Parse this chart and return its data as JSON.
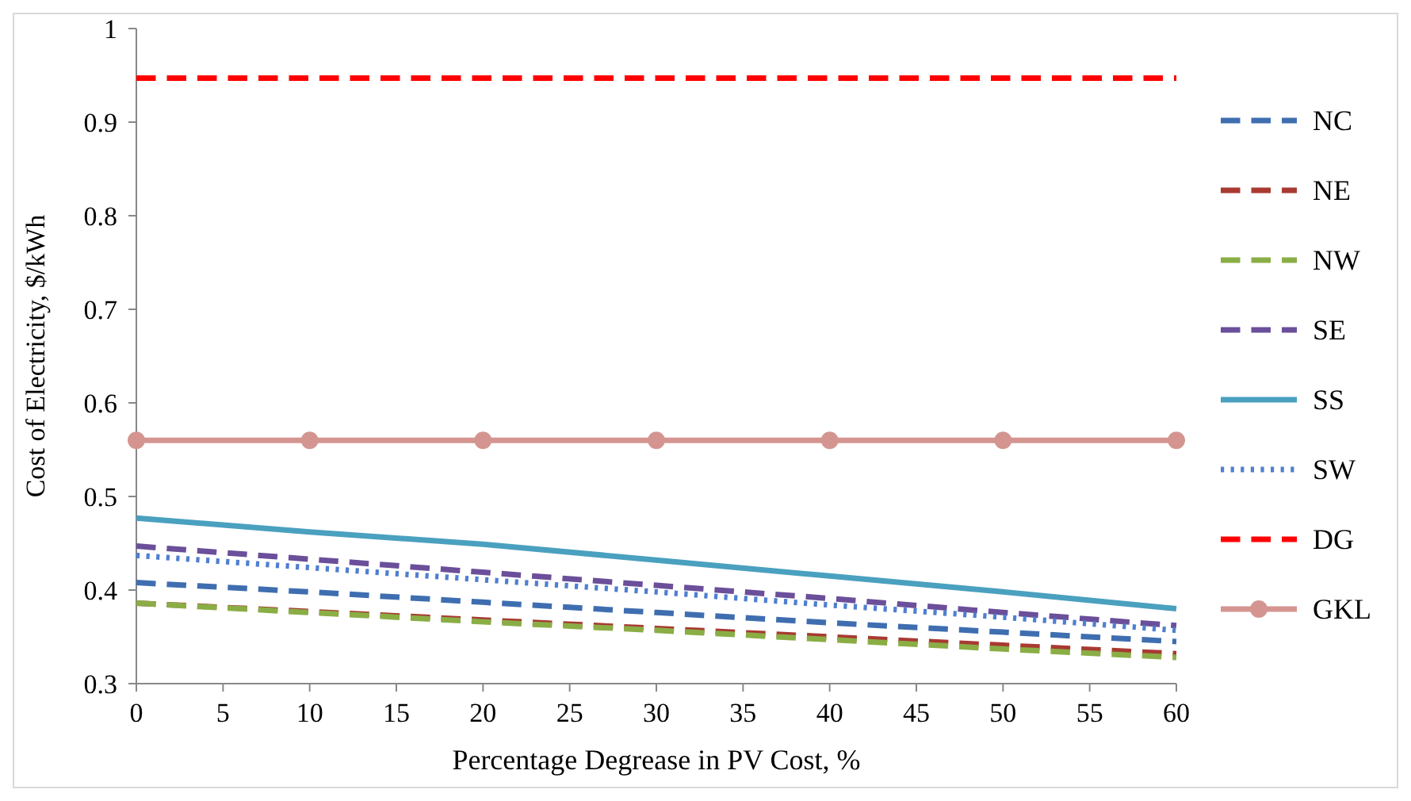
{
  "chart_data": {
    "type": "line",
    "xlabel": "Percentage Degrease in PV Cost, %",
    "ylabel": "Cost of Electricity, $/kWh",
    "x": [
      0,
      10,
      20,
      30,
      40,
      50,
      60
    ],
    "xlim": [
      0,
      60
    ],
    "xticks": [
      0,
      5,
      10,
      15,
      20,
      25,
      30,
      35,
      40,
      45,
      50,
      55,
      60
    ],
    "ylim": [
      0.3,
      1
    ],
    "yticks": [
      0.3,
      0.4,
      0.5,
      0.6,
      0.7,
      0.8,
      0.9,
      {
        "value": 1,
        "label": "1"
      }
    ],
    "grid": false,
    "legend": "right",
    "marker": "none",
    "series": [
      {
        "name": "NC",
        "color": "#3f6eb0",
        "line_style": "dashed",
        "values": [
          0.408,
          0.398,
          0.387,
          0.376,
          0.365,
          0.355,
          0.345
        ]
      },
      {
        "name": "NE",
        "color": "#a83a32",
        "line_style": "dashed",
        "values": [
          0.386,
          0.377,
          0.368,
          0.359,
          0.35,
          0.341,
          0.332
        ]
      },
      {
        "name": "NW",
        "color": "#8aae45",
        "line_style": "dashed",
        "values": [
          0.386,
          0.376,
          0.366,
          0.357,
          0.347,
          0.337,
          0.328
        ]
      },
      {
        "name": "SE",
        "color": "#6b4f9a",
        "line_style": "dashed",
        "values": [
          0.447,
          0.433,
          0.419,
          0.405,
          0.391,
          0.376,
          0.362
        ]
      },
      {
        "name": "SS",
        "color": "#4aa0bf",
        "line_style": "solid",
        "values": [
          0.477,
          0.462,
          0.449,
          0.432,
          0.415,
          0.398,
          0.38
        ]
      },
      {
        "name": "SW",
        "color": "#4f7fd0",
        "line_style": "dotted",
        "values": [
          0.437,
          0.424,
          0.411,
          0.398,
          0.384,
          0.371,
          0.357
        ]
      },
      {
        "name": "DG",
        "color": "#ff0000",
        "line_style": "dashed",
        "values": [
          0.947,
          0.947,
          0.947,
          0.947,
          0.947,
          0.947,
          0.947
        ]
      },
      {
        "name": "GKL",
        "color": "#d49591",
        "line_style": "solid",
        "marker": "circle",
        "values": [
          0.56,
          0.56,
          0.56,
          0.56,
          0.56,
          0.56,
          0.56
        ]
      }
    ]
  }
}
